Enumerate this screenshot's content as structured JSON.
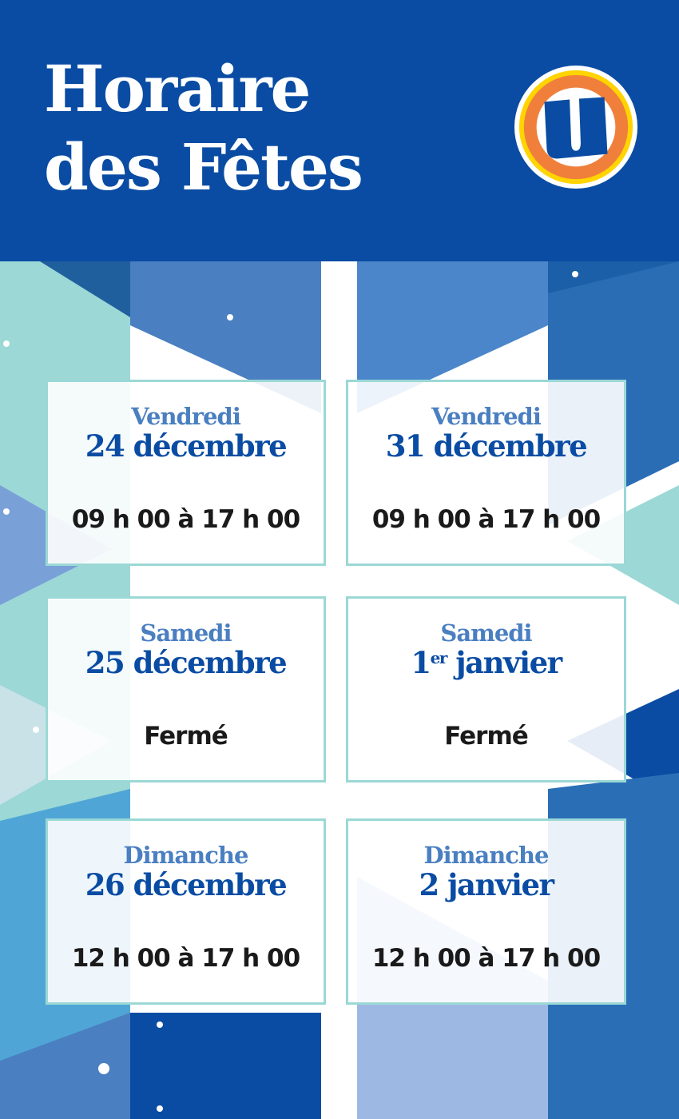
{
  "header": {
    "title_line1": "Horaire",
    "title_line2": "des Fêtes",
    "logo": "U-brand-logo"
  },
  "colors": {
    "brand_blue": "#0a4ca3",
    "light_blue": "#4a7fc1",
    "teal": "#9bd8d6",
    "logo_orange": "#f07f3c",
    "logo_yellow": "#ffd400"
  },
  "schedule": [
    {
      "day": "Vendredi",
      "date": "24 décembre",
      "hours": "09 h 00 à 17 h 00"
    },
    {
      "day": "Vendredi",
      "date": "31 décembre",
      "hours": "09 h 00 à 17 h 00"
    },
    {
      "day": "Samedi",
      "date": "25 décembre",
      "hours": "Fermé"
    },
    {
      "day": "Samedi",
      "date_num": "1",
      "date_sup": "er",
      "date_rest": " janvier",
      "hours": "Fermé"
    },
    {
      "day": "Dimanche",
      "date": "26 décembre",
      "hours": "12 h 00 à 17 h 00"
    },
    {
      "day": "Dimanche",
      "date": "2 janvier",
      "hours": "12 h 00 à 17 h 00"
    }
  ]
}
